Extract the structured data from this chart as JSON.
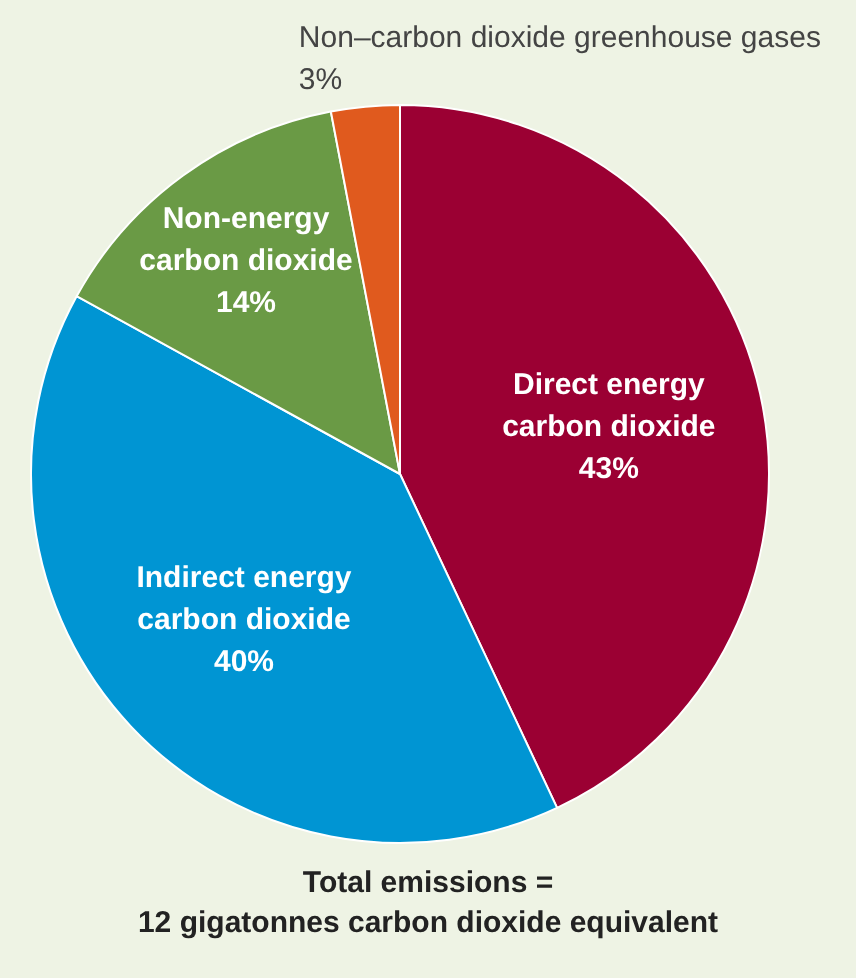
{
  "chart_data": {
    "type": "pie",
    "categories": [
      "Direct energy\ncarbon dioxide",
      "Indirect energy\ncarbon dioxide",
      "Non-energy\ncarbon dioxide",
      "Non–carbon dioxide greenhouse gases"
    ],
    "values": [
      43,
      40,
      14,
      3
    ],
    "value_labels": [
      "43%",
      "40%",
      "14%",
      "3%"
    ],
    "colors": [
      "#9b0033",
      "#0095d3",
      "#6a9a45",
      "#e05a1e"
    ],
    "legend": false,
    "annotations": [
      "Total emissions =\n12 gigatonnes carbon dioxide equivalent"
    ]
  }
}
